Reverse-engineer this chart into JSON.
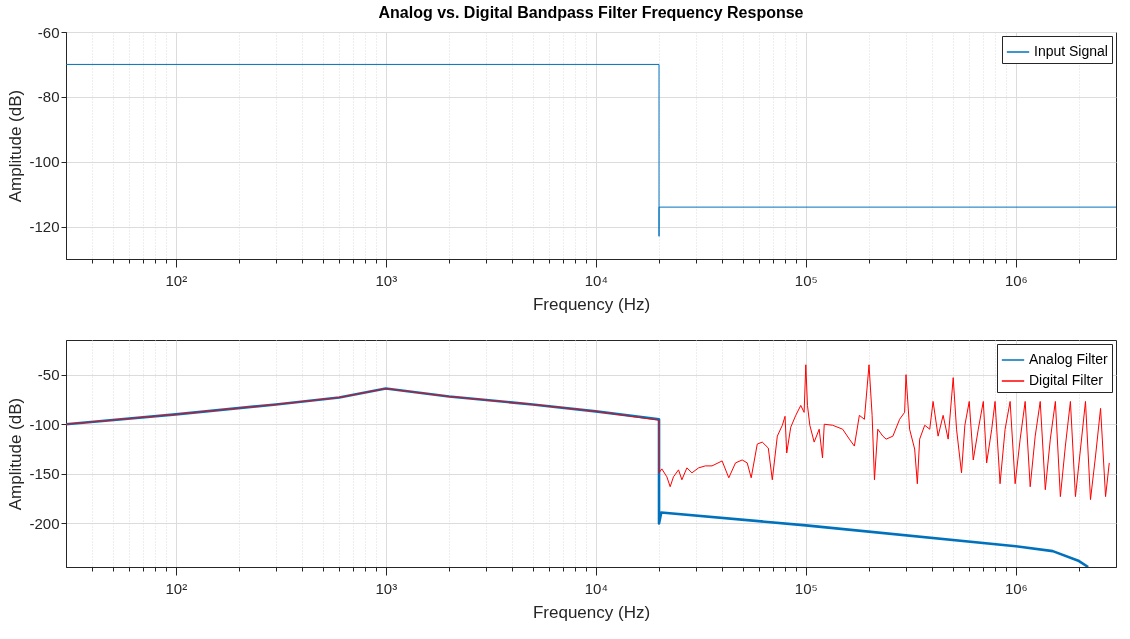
{
  "chart_data": [
    {
      "type": "line",
      "title": "Analog vs. Digital Bandpass Filter Frequency Response",
      "xlabel": "Frequency (Hz)",
      "ylabel": "Amplitude (dB)",
      "log": "x",
      "grid": true,
      "legend": "top right",
      "xlim": [
        30,
        3000000
      ],
      "ylim": [
        -130,
        -60
      ],
      "xticks": [
        {
          "value": 40,
          "label": null
        },
        {
          "value": 50,
          "label": null
        },
        {
          "value": 60,
          "label": null
        },
        {
          "value": 70,
          "label": null
        },
        {
          "value": 80,
          "label": null
        },
        {
          "value": 90,
          "label": null
        },
        {
          "value": 100,
          "label": "10²"
        },
        {
          "value": 200,
          "label": null
        },
        {
          "value": 300,
          "label": null
        },
        {
          "value": 400,
          "label": null
        },
        {
          "value": 500,
          "label": null
        },
        {
          "value": 600,
          "label": null
        },
        {
          "value": 700,
          "label": null
        },
        {
          "value": 800,
          "label": null
        },
        {
          "value": 900,
          "label": null
        },
        {
          "value": 1000,
          "label": "10³"
        },
        {
          "value": 2000,
          "label": null
        },
        {
          "value": 3000,
          "label": null
        },
        {
          "value": 4000,
          "label": null
        },
        {
          "value": 5000,
          "label": null
        },
        {
          "value": 6000,
          "label": null
        },
        {
          "value": 7000,
          "label": null
        },
        {
          "value": 8000,
          "label": null
        },
        {
          "value": 9000,
          "label": null
        },
        {
          "value": 10000,
          "label": "10⁴"
        },
        {
          "value": 20000,
          "label": null
        },
        {
          "value": 30000,
          "label": null
        },
        {
          "value": 40000,
          "label": null
        },
        {
          "value": 50000,
          "label": null
        },
        {
          "value": 60000,
          "label": null
        },
        {
          "value": 70000,
          "label": null
        },
        {
          "value": 80000,
          "label": null
        },
        {
          "value": 90000,
          "label": null
        },
        {
          "value": 100000,
          "label": "10⁵"
        },
        {
          "value": 200000,
          "label": null
        },
        {
          "value": 300000,
          "label": null
        },
        {
          "value": 400000,
          "label": null
        },
        {
          "value": 500000,
          "label": null
        },
        {
          "value": 600000,
          "label": null
        },
        {
          "value": 700000,
          "label": null
        },
        {
          "value": 800000,
          "label": null
        },
        {
          "value": 900000,
          "label": null
        },
        {
          "value": 1000000,
          "label": "10⁶"
        },
        {
          "value": 2000000,
          "label": null
        }
      ],
      "yticks": [
        -60,
        -80,
        -100,
        -120
      ],
      "series": [
        {
          "name": "Input Signal",
          "color": "#0072bd",
          "x": [
            30,
            20000,
            20000,
            20000,
            3000000
          ],
          "values": [
            -70,
            -70,
            -123,
            -114,
            -114
          ]
        }
      ]
    },
    {
      "type": "line",
      "xlabel": "Frequency (Hz)",
      "ylabel": "Amplitude (dB)",
      "log": "x",
      "grid": true,
      "legend": "top right",
      "xlim": [
        30,
        3000000
      ],
      "ylim": [
        -244,
        -15
      ],
      "xticks": [
        {
          "value": 40,
          "label": null
        },
        {
          "value": 50,
          "label": null
        },
        {
          "value": 60,
          "label": null
        },
        {
          "value": 70,
          "label": null
        },
        {
          "value": 80,
          "label": null
        },
        {
          "value": 90,
          "label": null
        },
        {
          "value": 100,
          "label": "10²"
        },
        {
          "value": 200,
          "label": null
        },
        {
          "value": 300,
          "label": null
        },
        {
          "value": 400,
          "label": null
        },
        {
          "value": 500,
          "label": null
        },
        {
          "value": 600,
          "label": null
        },
        {
          "value": 700,
          "label": null
        },
        {
          "value": 800,
          "label": null
        },
        {
          "value": 900,
          "label": null
        },
        {
          "value": 1000,
          "label": "10³"
        },
        {
          "value": 2000,
          "label": null
        },
        {
          "value": 3000,
          "label": null
        },
        {
          "value": 4000,
          "label": null
        },
        {
          "value": 5000,
          "label": null
        },
        {
          "value": 6000,
          "label": null
        },
        {
          "value": 7000,
          "label": null
        },
        {
          "value": 8000,
          "label": null
        },
        {
          "value": 9000,
          "label": null
        },
        {
          "value": 10000,
          "label": "10⁴"
        },
        {
          "value": 20000,
          "label": null
        },
        {
          "value": 30000,
          "label": null
        },
        {
          "value": 40000,
          "label": null
        },
        {
          "value": 50000,
          "label": null
        },
        {
          "value": 60000,
          "label": null
        },
        {
          "value": 70000,
          "label": null
        },
        {
          "value": 80000,
          "label": null
        },
        {
          "value": 90000,
          "label": null
        },
        {
          "value": 100000,
          "label": "10⁵"
        },
        {
          "value": 200000,
          "label": null
        },
        {
          "value": 300000,
          "label": null
        },
        {
          "value": 400000,
          "label": null
        },
        {
          "value": 500000,
          "label": null
        },
        {
          "value": 600000,
          "label": null
        },
        {
          "value": 700000,
          "label": null
        },
        {
          "value": 800000,
          "label": null
        },
        {
          "value": 900000,
          "label": null
        },
        {
          "value": 1000000,
          "label": "10⁶"
        },
        {
          "value": 2000000,
          "label": null
        }
      ],
      "yticks": [
        -50,
        -100,
        -150,
        -200
      ],
      "series": [
        {
          "name": "Analog Filter",
          "color": "#0072bd",
          "x": [
            30,
            100,
            300,
            600,
            1000,
            2000,
            5000,
            10000,
            20000,
            20000,
            20500,
            100000,
            1000000,
            1500000,
            2000000,
            2210000
          ],
          "values": [
            -100,
            -90,
            -80,
            -73,
            -64,
            -72,
            -80,
            -87,
            -95,
            -200,
            -189,
            -202,
            -223,
            -228,
            -238,
            -244
          ]
        },
        {
          "name": "Digital Filter",
          "color": "#ff0000",
          "x": [
            30,
            100,
            300,
            600,
            1000,
            2000,
            5000,
            10000,
            20000,
            20000,
            20620,
            21790,
            22600,
            23440,
            24770,
            25700,
            27150,
            28690,
            30870,
            33220,
            35760,
            39940,
            42980,
            46260,
            49780,
            52600,
            54950,
            58720,
            62040,
            66290,
            69260,
            73180,
            77330,
            79640,
            81120,
            84770,
            89590,
            94640,
            98170,
            100000,
            101850,
            104500,
            109600,
            115800,
            120100,
            122400,
            134200,
            149800,
            161200,
            170300,
            179900,
            190100,
            200000,
            206900,
            212300,
            220200,
            232700,
            241400,
            259800,
            279700,
            295500,
            300000,
            312100,
            329900,
            339700,
            348500,
            368400,
            389200,
            403700,
            426600,
            450700,
            476300,
            503300,
            522100,
            551400,
            572100,
            600100,
            627200,
            662800,
            700200,
            726400,
            767800,
            796500,
            841400,
            889200,
            939600,
            992700,
            1049000,
            1108000,
            1171000,
            1237000,
            1307000,
            1382000,
            1460000,
            1543000,
            1630000,
            1722000,
            1820000,
            1923000,
            2032000,
            2147000,
            2268000,
            2397000,
            2533000,
            2676000,
            2786000
          ],
          "values": [
            -100,
            -90,
            -80,
            -73,
            -64,
            -72,
            -80,
            -87,
            -96,
            -149,
            -145,
            -153,
            -163,
            -153,
            -146,
            -156,
            -144,
            -149,
            -144,
            -142,
            -142,
            -137,
            -154,
            -139,
            -136,
            -139,
            -154,
            -120,
            -118,
            -124,
            -156,
            -112,
            -101,
            -92,
            -129,
            -103,
            -91,
            -81,
            -88,
            -40,
            -81,
            -101,
            -118,
            -105,
            -134,
            -100,
            -101,
            -105,
            -115,
            -122,
            -91,
            -95,
            -40,
            -91,
            -156,
            -105,
            -112,
            -115,
            -112,
            -95,
            -88,
            -50,
            -105,
            -125,
            -160,
            -115,
            -101,
            -105,
            -77,
            -112,
            -91,
            -115,
            -53,
            -105,
            -149,
            -101,
            -77,
            -136,
            -105,
            -77,
            -139,
            -105,
            -77,
            -160,
            -105,
            -77,
            -160,
            -115,
            -77,
            -163,
            -112,
            -77,
            -166,
            -115,
            -77,
            -173,
            -122,
            -77,
            -173,
            -125,
            -77,
            -176,
            -132,
            -84,
            -173,
            -139
          ]
        }
      ]
    }
  ]
}
